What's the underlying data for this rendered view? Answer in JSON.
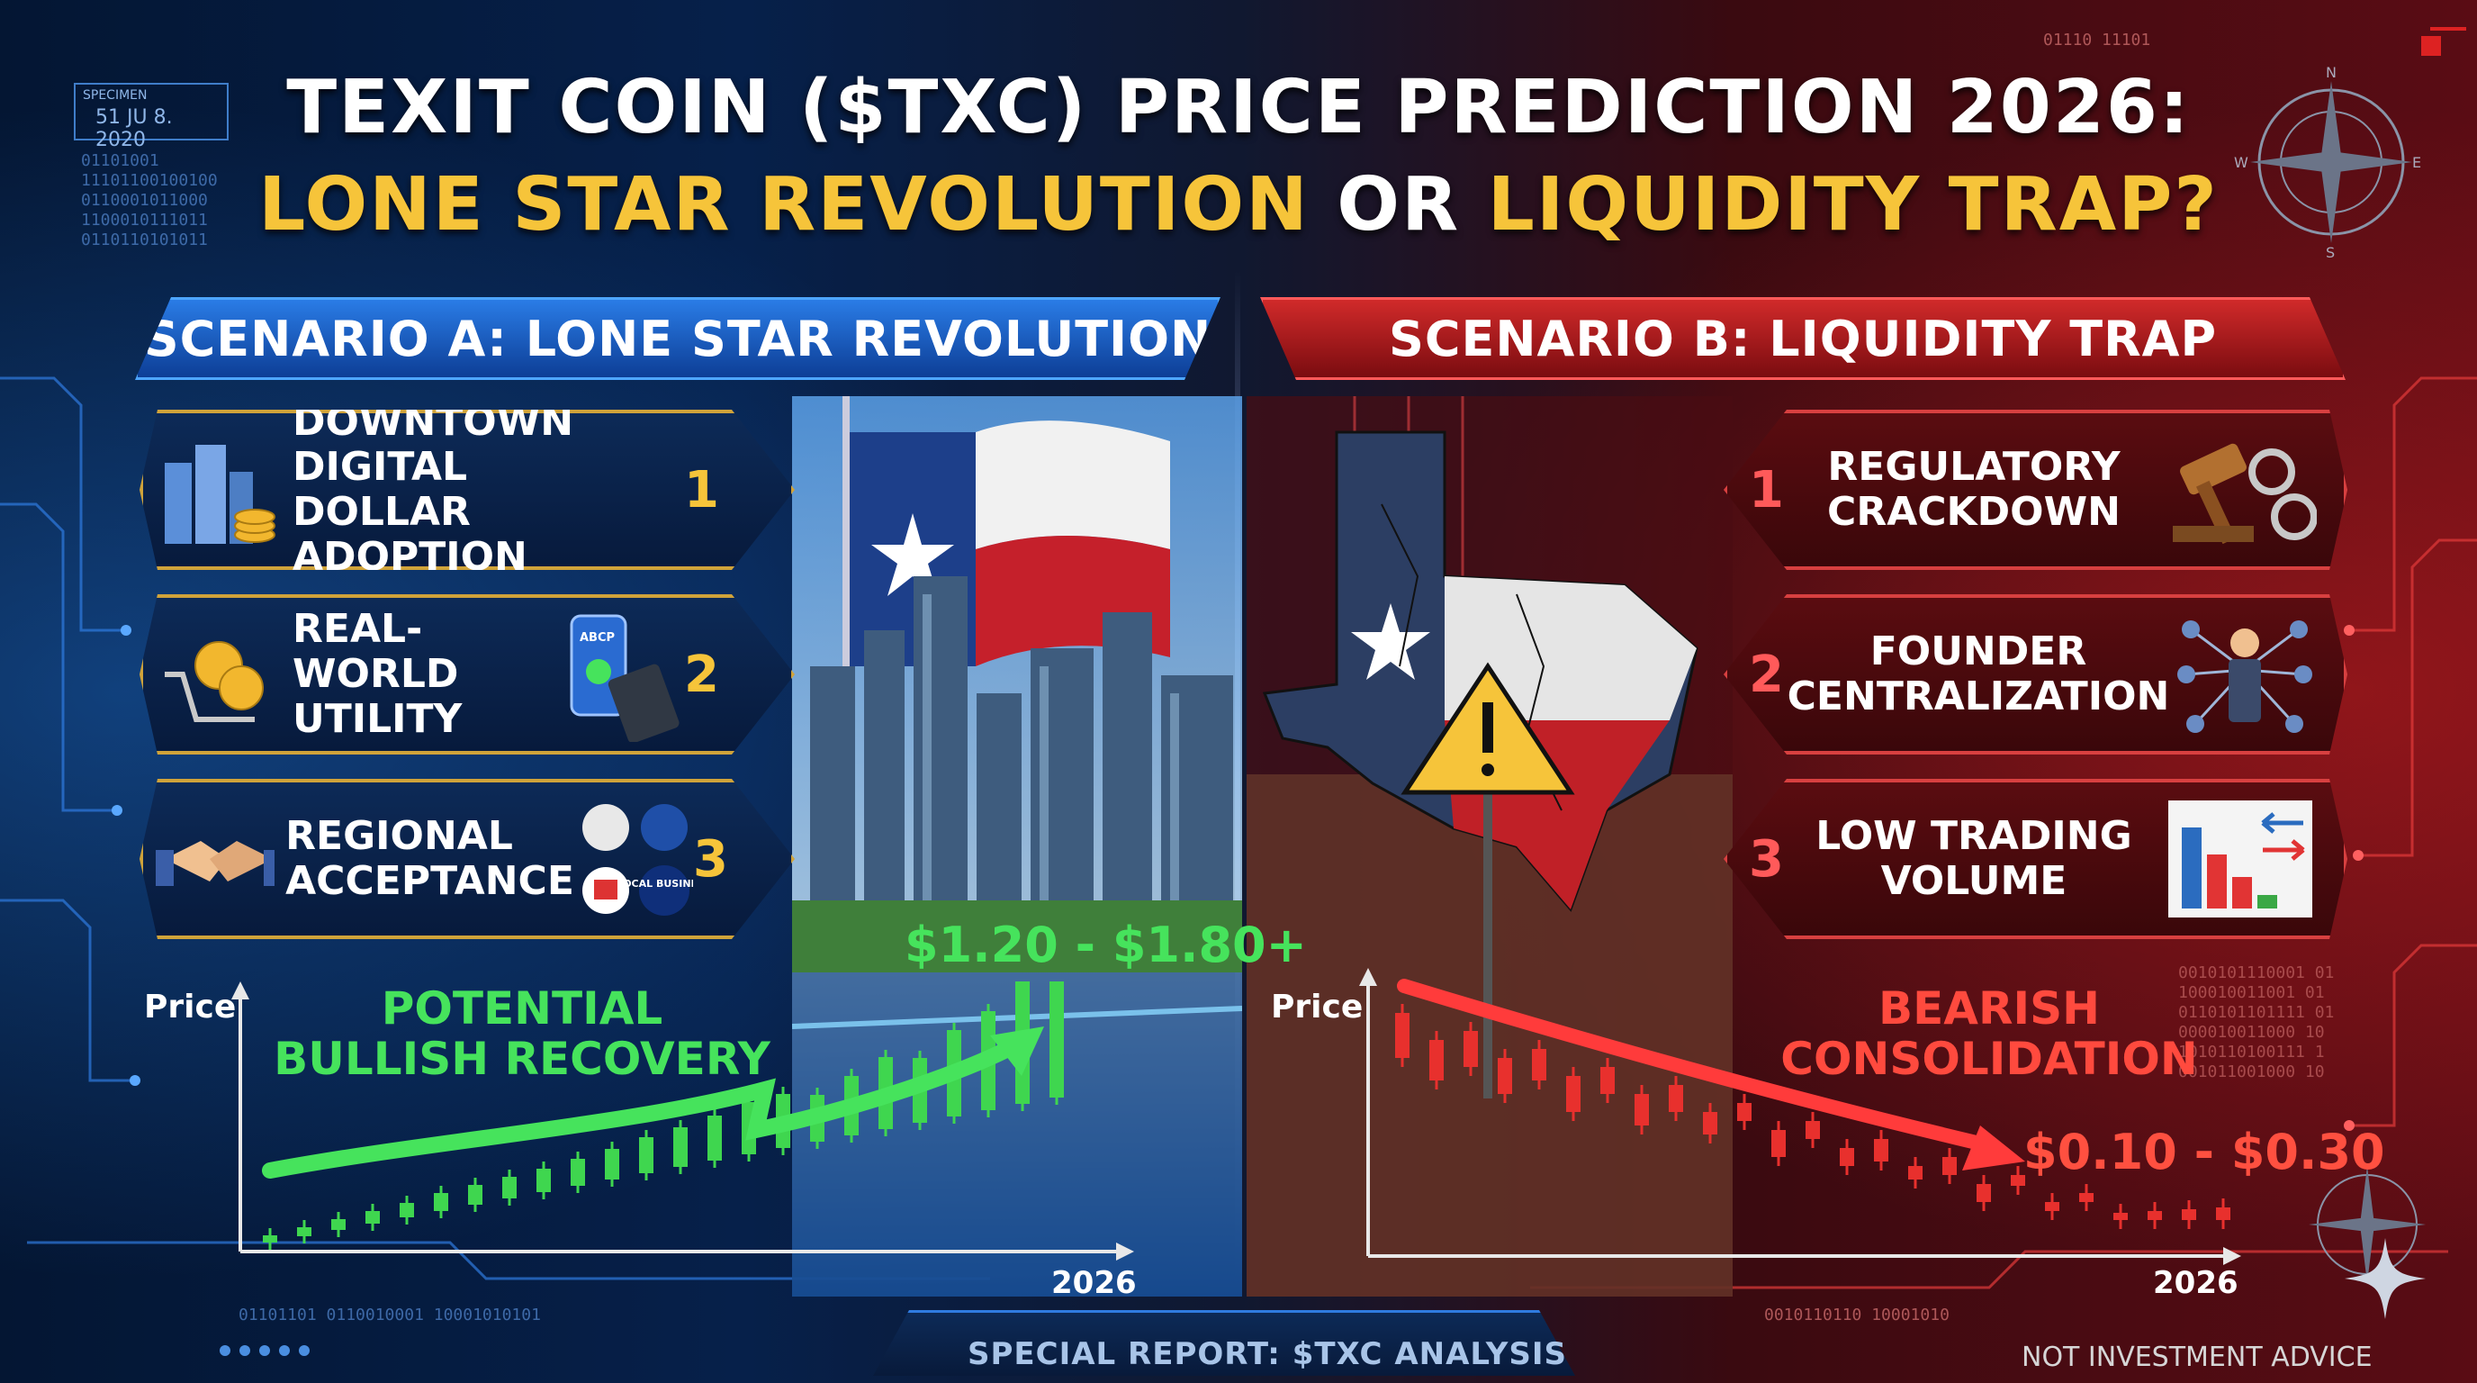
{
  "header": {
    "title_line1": "TEXIT COIN ($TXC) PRICE PREDICTION 2026:",
    "title_line2_a": "LONE STAR REVOLUTION",
    "title_line2_or": " OR ",
    "title_line2_b": "LIQUIDITY TRAP?"
  },
  "decor": {
    "date_label": "SPECIMEN",
    "date_value": "51 JU 8. 2020",
    "binary_left": [
      "01101001",
      "11101100100100",
      "0110001011000",
      "1100010111011",
      "0110110101011"
    ],
    "binary_top_right": "01110 11101",
    "binary_bottom_left": "01101101 0110010001 10001010101",
    "binary_bottom_right": "0010110110   10001010",
    "binary_right": [
      "0010101110001 01",
      "100010011001 01",
      "0110101101111 01",
      "000010011000 10",
      "1010110100111 1",
      "001011001000 10"
    ],
    "compass": {
      "n": "N",
      "e": "E",
      "s": "S",
      "w": "W"
    }
  },
  "scenario_a": {
    "banner": "SCENARIO A: LONE STAR REVOLUTION",
    "items": [
      {
        "label_1": "DOWNTOWN DIGITAL",
        "label_2": "DOLLAR ADOPTION",
        "num": "1",
        "icon": "city-coins-icon"
      },
      {
        "label_1": "REAL-WORLD",
        "label_2": "UTILITY",
        "num": "2",
        "icon": "payment-terminal-icon",
        "phone_text": "ABCP"
      },
      {
        "label_1": "REGIONAL",
        "label_2": "ACCEPTANCE",
        "num": "3",
        "icon": "handshake-icon",
        "badge_text": "LOCAL BUSINESS"
      }
    ],
    "chart_label": "POTENTIAL BULLISH RECOVERY",
    "price_range": "$1.20 - $1.80+",
    "ylabel": "Price",
    "xlabel": "2026"
  },
  "scenario_b": {
    "banner": "SCENARIO B: LIQUIDITY TRAP",
    "items": [
      {
        "label_1": "REGULATORY",
        "label_2": "CRACKDOWN",
        "num": "1",
        "icon": "gavel-handcuffs-icon"
      },
      {
        "label_1": "FOUNDER",
        "label_2": "CENTRALIZATION",
        "num": "2",
        "icon": "network-person-icon"
      },
      {
        "label_1": "LOW TRADING",
        "label_2": "VOLUME",
        "num": "3",
        "icon": "bar-chart-arrows-icon"
      }
    ],
    "chart_label": "BEARISH CONSOLIDATION",
    "price_range": "$0.10 - $0.30",
    "ylabel": "Price",
    "xlabel": "2026"
  },
  "footer": {
    "report": "SPECIAL REPORT: $TXC ANALYSIS",
    "disclaimer": "NOT INVESTMENT ADVICE"
  },
  "colors": {
    "bull_green": "#46e35c",
    "bear_red": "#ff4a3e",
    "gold": "#f6c43a",
    "blue_accent": "#2a7ce6"
  }
}
